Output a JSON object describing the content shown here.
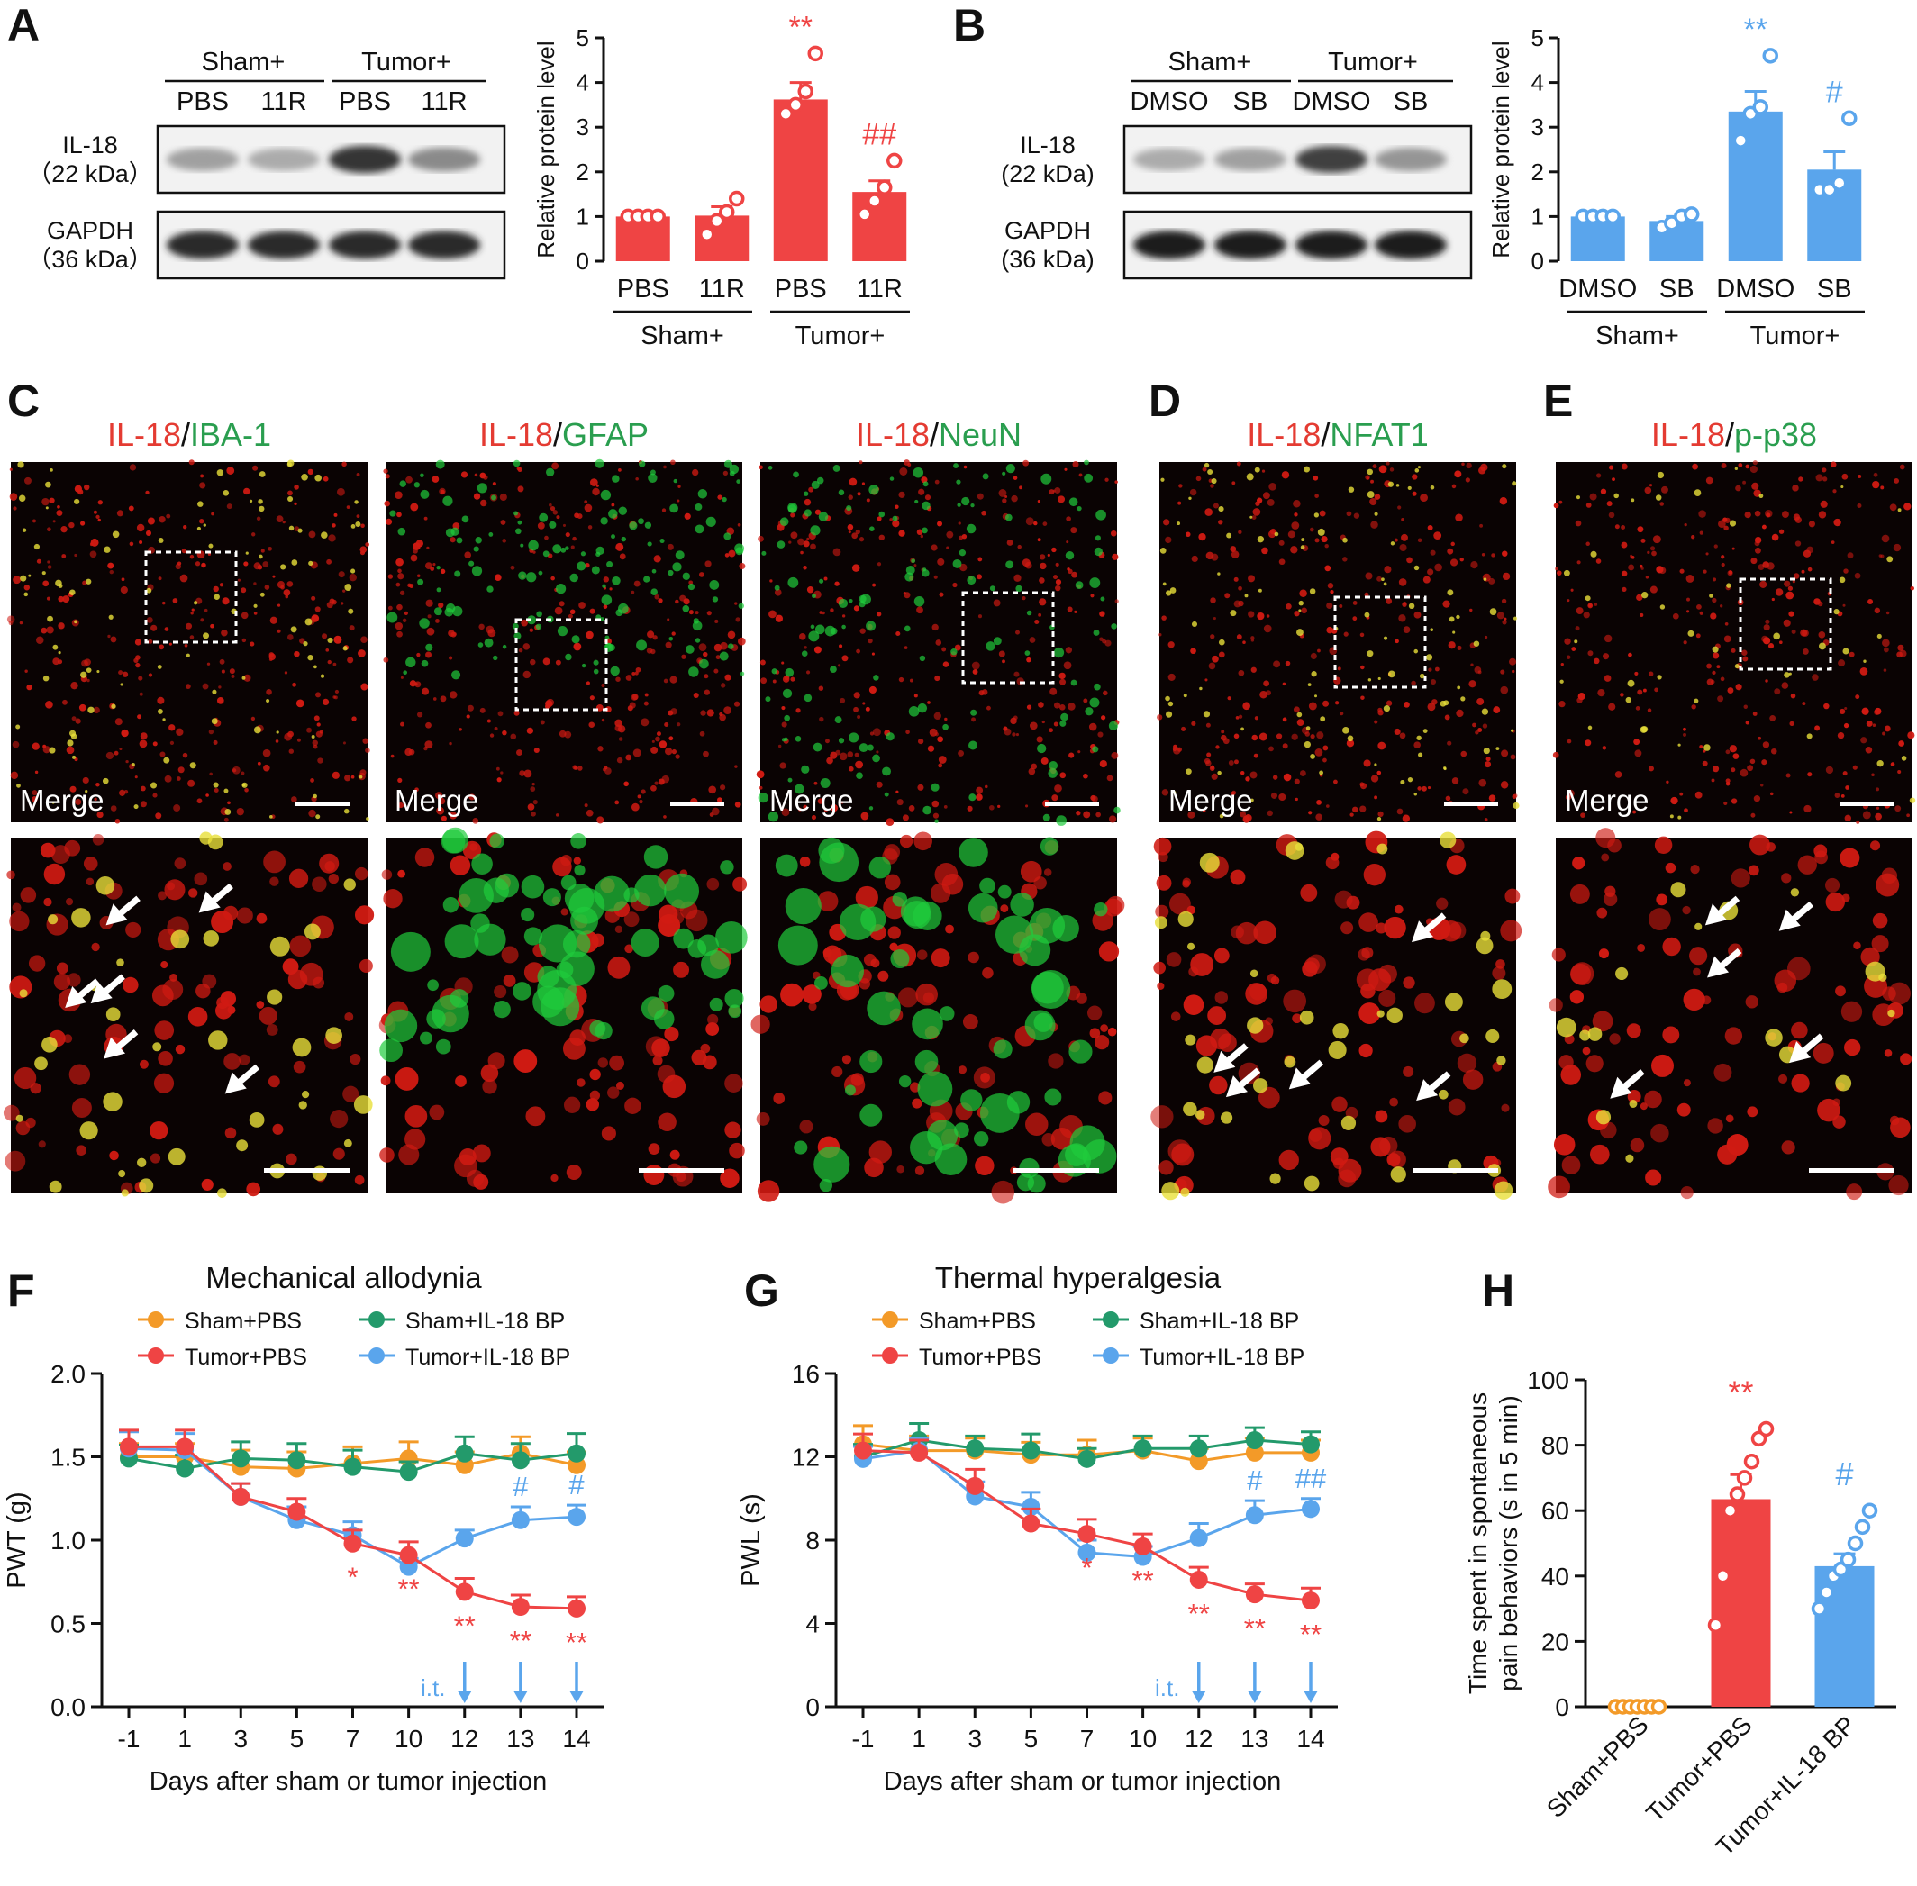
{
  "colors": {
    "red": "#ef4444",
    "blue": "#5aa5ec",
    "orange": "#f39a28",
    "green": "#239a6b",
    "micro_red": "#d01a12",
    "micro_green": "#1fcc3c"
  },
  "panel_letters": [
    "A",
    "B",
    "C",
    "D",
    "E",
    "F",
    "G",
    "H"
  ],
  "blot_A": {
    "top_groups": [
      "Sham+",
      "Tumor+"
    ],
    "lanes": [
      "PBS",
      "11R",
      "PBS",
      "11R"
    ],
    "rows": [
      {
        "name_line1": "IL-18",
        "name_line2": "（22 kDa）",
        "intensity": [
          0.35,
          0.3,
          0.85,
          0.45
        ]
      },
      {
        "name_line1": "GAPDH",
        "name_line2": "（36 kDa）",
        "intensity": [
          0.9,
          0.9,
          0.9,
          0.9
        ]
      }
    ]
  },
  "blot_B": {
    "top_groups": [
      "Sham+",
      "Tumor+"
    ],
    "lanes": [
      "DMSO",
      "SB",
      "DMSO",
      "SB"
    ],
    "rows": [
      {
        "name_line1": "IL-18",
        "name_line2": "(22 kDa)",
        "intensity": [
          0.3,
          0.35,
          0.8,
          0.4
        ]
      },
      {
        "name_line1": "GAPDH",
        "name_line2": "(36 kDa)",
        "intensity": [
          0.95,
          0.95,
          0.95,
          0.95
        ]
      }
    ]
  },
  "micro_C": [
    {
      "red_label": "IL-18",
      "sep": "/",
      "green_label": "IBA-1",
      "merge": "Merge",
      "coloc": "high",
      "arrows": 6
    },
    {
      "red_label": "IL-18",
      "sep": "/",
      "green_label": "GFAP",
      "merge": "Merge",
      "coloc": "low",
      "arrows": 0
    },
    {
      "red_label": "IL-18",
      "sep": "/",
      "green_label": "NeuN",
      "merge": "Merge",
      "coloc": "none",
      "arrows": 0
    }
  ],
  "micro_D": [
    {
      "red_label": "IL-18",
      "sep": "/",
      "green_label": "NFAT1",
      "merge": "Merge",
      "coloc": "high",
      "arrows": 5
    }
  ],
  "micro_E": [
    {
      "red_label": "IL-18",
      "sep": "/",
      "green_label": "p-p38",
      "merge": "Merge",
      "coloc": "medium",
      "arrows": 5
    }
  ],
  "chart_data": [
    {
      "panel": "A",
      "type": "bar",
      "categories": [
        "PBS",
        "11R",
        "PBS",
        "11R"
      ],
      "group_labels": [
        "Sham+",
        "Tumor+"
      ],
      "ylabel": "Relative protein level",
      "ylim": [
        0,
        5
      ],
      "yticks": [
        0,
        1,
        2,
        3,
        4,
        5
      ],
      "values": [
        1.0,
        1.02,
        3.62,
        1.55
      ],
      "errors": [
        0.0,
        0.2,
        0.38,
        0.25
      ],
      "points": [
        [
          1,
          1,
          1,
          1
        ],
        [
          0.6,
          0.9,
          1.1,
          1.4
        ],
        [
          3.3,
          3.5,
          3.8,
          4.65
        ],
        [
          1.05,
          1.35,
          1.65,
          2.25
        ]
      ],
      "annotations": [
        "",
        "",
        "**",
        "##"
      ],
      "color": "#ef4444"
    },
    {
      "panel": "B",
      "type": "bar",
      "categories": [
        "DMSO",
        "SB",
        "DMSO",
        "SB"
      ],
      "group_labels": [
        "Sham+",
        "Tumor+"
      ],
      "ylabel": "Relative protein level",
      "ylim": [
        0,
        5
      ],
      "yticks": [
        0,
        1,
        2,
        3,
        4,
        5
      ],
      "values": [
        1.0,
        0.9,
        3.35,
        2.05
      ],
      "errors": [
        0.0,
        0.1,
        0.45,
        0.4
      ],
      "points": [
        [
          1,
          1,
          1,
          1
        ],
        [
          0.75,
          0.85,
          1.0,
          1.05
        ],
        [
          2.7,
          3.3,
          3.45,
          4.6
        ],
        [
          1.6,
          1.6,
          1.75,
          3.2
        ]
      ],
      "annotations": [
        "",
        "",
        "**",
        "#"
      ],
      "color": "#5aa5ec"
    },
    {
      "panel": "F",
      "type": "line",
      "title": "Mechanical allodynia",
      "xlabel": "Days after sham or tumor injection",
      "ylabel": "PWT (g)",
      "x": [
        "-1",
        "1",
        "3",
        "5",
        "7",
        "10",
        "12",
        "13",
        "14"
      ],
      "ylim": [
        0,
        2.0
      ],
      "yticks": [
        "0.0",
        "0.5",
        "1.0",
        "1.5",
        "2.0"
      ],
      "series": [
        {
          "name": "Sham+PBS",
          "color": "#f39a28",
          "values": [
            1.5,
            1.5,
            1.44,
            1.43,
            1.46,
            1.49,
            1.45,
            1.52,
            1.45
          ],
          "errors": [
            0.08,
            0.08,
            0.1,
            0.1,
            0.1,
            0.1,
            0.08,
            0.1,
            0.08
          ]
        },
        {
          "name": "Sham+IL-18 BP",
          "color": "#239a6b",
          "values": [
            1.49,
            1.43,
            1.49,
            1.48,
            1.44,
            1.41,
            1.52,
            1.48,
            1.52
          ],
          "errors": [
            0.08,
            0.08,
            0.1,
            0.1,
            0.1,
            0.06,
            0.1,
            0.1,
            0.12
          ]
        },
        {
          "name": "Tumor+PBS",
          "color": "#ef4444",
          "values": [
            1.56,
            1.56,
            1.26,
            1.17,
            0.98,
            0.91,
            0.69,
            0.6,
            0.59
          ],
          "errors": [
            0.1,
            0.1,
            0.08,
            0.08,
            0.08,
            0.08,
            0.08,
            0.07,
            0.07
          ]
        },
        {
          "name": "Tumor+IL-18 BP",
          "color": "#5aa5ec",
          "values": [
            1.55,
            1.54,
            1.26,
            1.12,
            1.03,
            0.84,
            1.01,
            1.12,
            1.14
          ],
          "errors": [
            0.1,
            0.1,
            0.08,
            0.08,
            0.08,
            0.05,
            0.05,
            0.08,
            0.07
          ]
        }
      ],
      "annotations": [
        {
          "series": "Tumor+PBS",
          "index": 4,
          "text": "*"
        },
        {
          "series": "Tumor+PBS",
          "index": 5,
          "text": "**"
        },
        {
          "series": "Tumor+PBS",
          "index": 6,
          "text": "**"
        },
        {
          "series": "Tumor+PBS",
          "index": 7,
          "text": "**"
        },
        {
          "series": "Tumor+PBS",
          "index": 8,
          "text": "**"
        },
        {
          "series": "Tumor+IL-18 BP",
          "index": 7,
          "text": "#"
        },
        {
          "series": "Tumor+IL-18 BP",
          "index": 8,
          "text": "#"
        }
      ],
      "it_label": "i.t.",
      "it_days_index": [
        6,
        7,
        8
      ],
      "legend_position": "top"
    },
    {
      "panel": "G",
      "type": "line",
      "title": "Thermal hyperalgesia",
      "xlabel": "Days after sham or tumor injection",
      "ylabel": "PWL (s)",
      "x": [
        "-1",
        "1",
        "3",
        "5",
        "7",
        "10",
        "12",
        "13",
        "14"
      ],
      "ylim": [
        0,
        16
      ],
      "yticks": [
        "0",
        "4",
        "8",
        "12",
        "16"
      ],
      "series": [
        {
          "name": "Sham+PBS",
          "color": "#f39a28",
          "values": [
            12.6,
            12.3,
            12.3,
            12.1,
            12.1,
            12.3,
            11.8,
            12.2,
            12.2
          ],
          "errors": [
            0.9,
            0.7,
            0.6,
            0.6,
            0.7,
            0.6,
            0.6,
            0.7,
            0.6
          ]
        },
        {
          "name": "Sham+IL-18 BP",
          "color": "#239a6b",
          "values": [
            12.0,
            12.8,
            12.4,
            12.3,
            11.9,
            12.4,
            12.4,
            12.8,
            12.6
          ],
          "errors": [
            0.6,
            0.8,
            0.6,
            0.8,
            0.5,
            0.6,
            0.6,
            0.6,
            0.6
          ]
        },
        {
          "name": "Tumor+PBS",
          "color": "#ef4444",
          "values": [
            12.3,
            12.2,
            10.6,
            8.8,
            8.3,
            7.7,
            6.1,
            5.4,
            5.1
          ],
          "errors": [
            0.8,
            0.6,
            0.8,
            0.7,
            0.7,
            0.6,
            0.6,
            0.5,
            0.6
          ]
        },
        {
          "name": "Tumor+IL-18 BP",
          "color": "#5aa5ec",
          "values": [
            11.9,
            12.3,
            10.1,
            9.6,
            7.4,
            7.2,
            8.1,
            9.2,
            9.5
          ],
          "errors": [
            0.6,
            0.6,
            0.7,
            0.7,
            0.6,
            0.5,
            0.7,
            0.7,
            0.5
          ]
        }
      ],
      "annotations": [
        {
          "series": "Tumor+PBS",
          "index": 4,
          "text": "*"
        },
        {
          "series": "Tumor+PBS",
          "index": 5,
          "text": "**"
        },
        {
          "series": "Tumor+PBS",
          "index": 6,
          "text": "**"
        },
        {
          "series": "Tumor+PBS",
          "index": 7,
          "text": "**"
        },
        {
          "series": "Tumor+PBS",
          "index": 8,
          "text": "**"
        },
        {
          "series": "Tumor+IL-18 BP",
          "index": 7,
          "text": "#"
        },
        {
          "series": "Tumor+IL-18 BP",
          "index": 8,
          "text": "##"
        }
      ],
      "it_label": "i.t.",
      "it_days_index": [
        6,
        7,
        8
      ],
      "legend_position": "top"
    },
    {
      "panel": "H",
      "type": "bar",
      "ylabel_line1": "Time spent in spontaneous",
      "ylabel_line2": "pain behaviors (s in 5 min)",
      "categories": [
        "Sham+PBS",
        "Tumor+PBS",
        "Tumor+IL-18 BP"
      ],
      "values": [
        0,
        63.5,
        43.0
      ],
      "errors": [
        0,
        7.5,
        3.8
      ],
      "points": [
        [
          0,
          0,
          0,
          0,
          0,
          0,
          0
        ],
        [
          25,
          40,
          60,
          65,
          70,
          75,
          82,
          85
        ],
        [
          30,
          35,
          40,
          42,
          45,
          50,
          55,
          60
        ]
      ],
      "colors": [
        "#f39a28",
        "#ef4444",
        "#5aa5ec"
      ],
      "annotations": [
        "",
        "**",
        "#"
      ],
      "ylim": [
        0,
        100
      ],
      "yticks": [
        "0",
        "20",
        "40",
        "60",
        "80",
        "100"
      ]
    }
  ]
}
